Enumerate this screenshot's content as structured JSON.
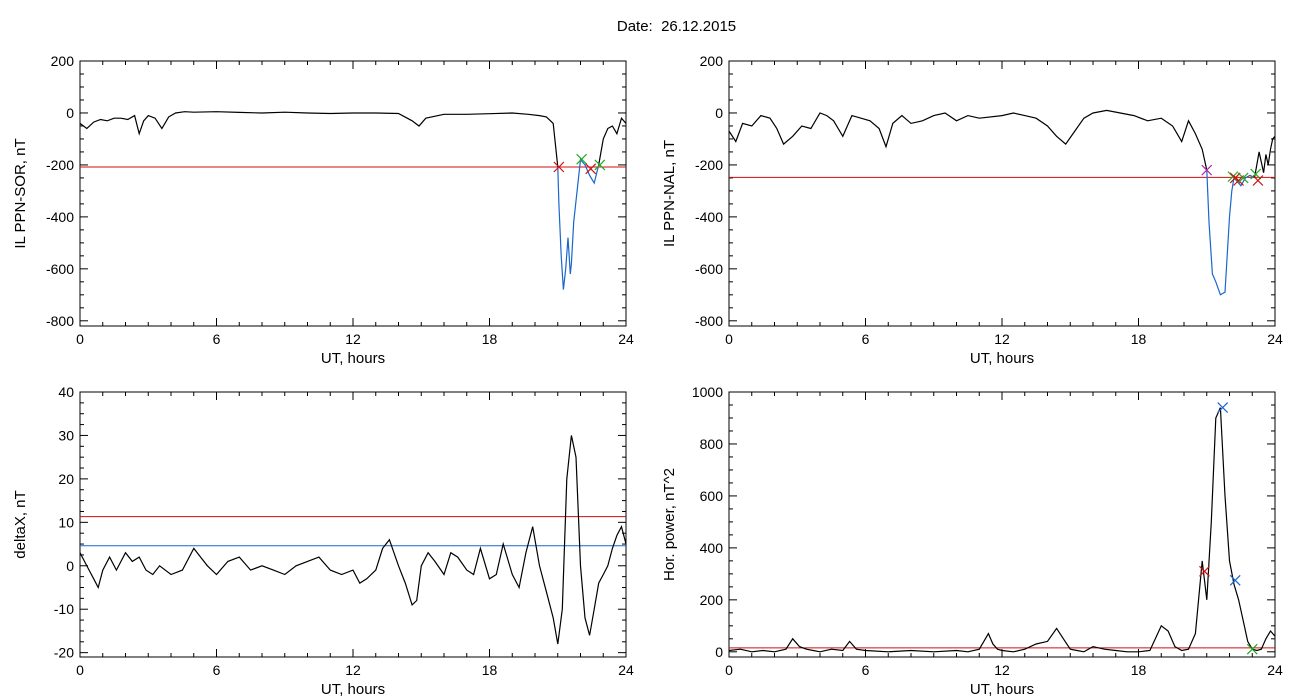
{
  "header": {
    "date_label": "Date:",
    "date_value": "26.12.2015"
  },
  "colors": {
    "data": "#000000",
    "threshold_red": "#cc1111",
    "threshold_blue": "#1a66cc",
    "cross_green": "#22aa22",
    "cross_purple": "#aa22aa"
  },
  "chart_data": [
    {
      "type": "line",
      "title": "",
      "xlabel": "UT, hours",
      "ylabel": "IL PPN-SOR, nT",
      "xlim": [
        0,
        24
      ],
      "ylim": [
        -820,
        200
      ],
      "xticks": [
        0,
        6,
        12,
        18,
        24
      ],
      "yticks": [
        -800,
        -600,
        -400,
        -200,
        0,
        200
      ],
      "series": [
        {
          "color": "#000000",
          "x": [
            0,
            0.3,
            0.6,
            0.9,
            1.2,
            1.5,
            1.8,
            2.1,
            2.4,
            2.6,
            2.8,
            3.0,
            3.3,
            3.6,
            3.9,
            4.2,
            4.6,
            5,
            6,
            7,
            8,
            9,
            10,
            11,
            12,
            13,
            14,
            14.6,
            14.9,
            15.2,
            16,
            17,
            18,
            19,
            19.7,
            20.2,
            20.5,
            20.8,
            21.0
          ],
          "y": [
            -40,
            -60,
            -35,
            -25,
            -30,
            -20,
            -20,
            -25,
            -10,
            -80,
            -30,
            -10,
            -20,
            -60,
            -15,
            0,
            5,
            3,
            5,
            2,
            0,
            3,
            0,
            -2,
            0,
            0,
            -2,
            -30,
            -50,
            -20,
            -5,
            -5,
            -3,
            0,
            -5,
            -10,
            -15,
            -40,
            -208
          ]
        },
        {
          "color": "#1a66cc",
          "x": [
            21.0,
            21.05,
            21.15,
            21.25,
            21.35,
            21.45,
            21.55,
            21.6,
            21.7,
            21.85,
            22.0,
            22.2,
            22.4,
            22.6,
            22.8
          ],
          "y": [
            -208,
            -350,
            -550,
            -680,
            -600,
            -480,
            -620,
            -580,
            -420,
            -300,
            -180,
            -200,
            -240,
            -270,
            -200
          ]
        },
        {
          "color": "#000000",
          "x": [
            22.8,
            23.0,
            23.2,
            23.4,
            23.6,
            23.8,
            24.0
          ],
          "y": [
            -200,
            -100,
            -60,
            -50,
            -80,
            -20,
            -40
          ]
        }
      ],
      "hlines": [
        {
          "y": -208,
          "color": "#cc1111"
        }
      ],
      "markers": [
        {
          "x": 21.05,
          "y": -208,
          "color": "#cc1111"
        },
        {
          "x": 22.05,
          "y": -178,
          "color": "#22aa22"
        },
        {
          "x": 22.45,
          "y": -215,
          "color": "#cc1111"
        },
        {
          "x": 22.85,
          "y": -200,
          "color": "#22aa22"
        }
      ]
    },
    {
      "type": "line",
      "title": "",
      "xlabel": "UT, hours",
      "ylabel": "IL PPN-NAL, nT",
      "xlim": [
        0,
        24
      ],
      "ylim": [
        -820,
        200
      ],
      "xticks": [
        0,
        6,
        12,
        18,
        24
      ],
      "yticks": [
        -800,
        -600,
        -400,
        -200,
        0,
        200
      ],
      "series": [
        {
          "color": "#000000",
          "x": [
            0,
            0.3,
            0.6,
            1.0,
            1.4,
            1.8,
            2.1,
            2.4,
            2.8,
            3.2,
            3.6,
            4.0,
            4.3,
            4.6,
            5.0,
            5.4,
            5.8,
            6.2,
            6.6,
            6.9,
            7.2,
            7.6,
            8.0,
            8.5,
            9,
            9.5,
            10,
            10.5,
            11,
            12,
            12.5,
            13,
            13.5,
            14,
            14.4,
            14.8,
            15.2,
            15.6,
            16,
            16.6,
            17.2,
            17.8,
            18.4,
            19,
            19.5,
            19.9,
            20.2,
            20.5,
            20.8,
            21.0
          ],
          "y": [
            -70,
            -110,
            -40,
            -50,
            -10,
            -20,
            -60,
            -120,
            -90,
            -50,
            -60,
            0,
            -10,
            -30,
            -90,
            -10,
            -20,
            -30,
            -60,
            -130,
            -40,
            -10,
            -40,
            -30,
            -10,
            0,
            -30,
            -10,
            -20,
            -10,
            0,
            -10,
            -20,
            -50,
            -90,
            -120,
            -70,
            -20,
            0,
            10,
            0,
            -10,
            -30,
            -20,
            -50,
            -110,
            -30,
            -80,
            -140,
            -220
          ]
        },
        {
          "color": "#1a66cc",
          "x": [
            21.0,
            21.1,
            21.25,
            21.4,
            21.6,
            21.8,
            22.0,
            22.1,
            22.2,
            22.3,
            22.5,
            22.7,
            22.9,
            23.1
          ],
          "y": [
            -220,
            -420,
            -620,
            -650,
            -700,
            -690,
            -400,
            -300,
            -250,
            -260,
            -280,
            -250,
            -240,
            -250
          ]
        },
        {
          "color": "#000000",
          "x": [
            23.1,
            23.3,
            23.5,
            23.6,
            23.7,
            23.8,
            23.9,
            24.0
          ],
          "y": [
            -250,
            -150,
            -230,
            -160,
            -200,
            -140,
            -100,
            -90
          ]
        }
      ],
      "hlines": [
        {
          "y": -248,
          "color": "#cc1111"
        }
      ],
      "markers": [
        {
          "x": 21.0,
          "y": -220,
          "color": "#aa22aa"
        },
        {
          "x": 22.15,
          "y": -245,
          "color": "#22aa22"
        },
        {
          "x": 22.25,
          "y": -250,
          "color": "#cc1111"
        },
        {
          "x": 22.4,
          "y": -260,
          "color": "#cc1111"
        },
        {
          "x": 22.6,
          "y": -250,
          "color": "#22aa22"
        },
        {
          "x": 23.15,
          "y": -235,
          "color": "#22aa22"
        },
        {
          "x": 23.25,
          "y": -260,
          "color": "#cc1111"
        }
      ]
    },
    {
      "type": "line",
      "title": "",
      "xlabel": "UT, hours",
      "ylabel": "deltaX, nT",
      "xlim": [
        0,
        24
      ],
      "ylim": [
        -21,
        40
      ],
      "xticks": [
        0,
        6,
        12,
        18,
        24
      ],
      "yticks": [
        -20,
        -10,
        0,
        10,
        20,
        30,
        40
      ],
      "series": [
        {
          "color": "#000000",
          "x": [
            0,
            0.2,
            0.4,
            0.6,
            0.8,
            1.0,
            1.3,
            1.6,
            2.0,
            2.3,
            2.6,
            2.9,
            3.2,
            3.5,
            4.0,
            4.5,
            5.0,
            5.3,
            5.6,
            6.0,
            6.5,
            7.0,
            7.5,
            8.0,
            8.5,
            9.0,
            9.5,
            10.0,
            10.5,
            11.0,
            11.5,
            12.0,
            12.3,
            12.6,
            13.0,
            13.3,
            13.6,
            14.0,
            14.3,
            14.6,
            14.8,
            15.0,
            15.3,
            15.6,
            16.0,
            16.3,
            16.6,
            17.0,
            17.3,
            17.6,
            18.0,
            18.3,
            18.6,
            19.0,
            19.3,
            19.6,
            19.9,
            20.2,
            20.5,
            20.8,
            21.0,
            21.2,
            21.4,
            21.6,
            21.8,
            22.0,
            22.2,
            22.4,
            22.6,
            22.8,
            23.0,
            23.2,
            23.4,
            23.6,
            23.8,
            24.0
          ],
          "y": [
            3,
            1,
            -1,
            -3,
            -5,
            -1,
            2,
            -1,
            3,
            1,
            2,
            -1,
            -2,
            0,
            -2,
            -1,
            4,
            2,
            0,
            -2,
            1,
            2,
            -1,
            0,
            -1,
            -2,
            0,
            1,
            2,
            -1,
            -2,
            -1,
            -4,
            -3,
            -1,
            4,
            6,
            0,
            -4,
            -9,
            -8,
            0,
            3,
            1,
            -2,
            3,
            2,
            -1,
            -2,
            4,
            -3,
            -2,
            5,
            -2,
            -5,
            3,
            9,
            0,
            -6,
            -12,
            -18,
            -10,
            20,
            30,
            25,
            0,
            -12,
            -16,
            -10,
            -4,
            -2,
            0,
            4,
            7,
            9,
            5
          ]
        }
      ],
      "hlines": [
        {
          "y": 11.3,
          "color": "#cc1111"
        },
        {
          "y": 4.6,
          "color": "#1a66cc"
        }
      ],
      "markers": []
    },
    {
      "type": "line",
      "title": "",
      "xlabel": "UT, hours",
      "ylabel": "Hor. power, nT^2",
      "xlim": [
        0,
        24
      ],
      "ylim": [
        -20,
        1000
      ],
      "xticks": [
        0,
        6,
        12,
        18,
        24
      ],
      "yticks": [
        0,
        200,
        400,
        600,
        800,
        1000
      ],
      "series": [
        {
          "color": "#000000",
          "x": [
            0,
            0.5,
            1.0,
            1.5,
            2.0,
            2.5,
            2.8,
            3.1,
            3.4,
            3.7,
            4.0,
            4.5,
            5.0,
            5.3,
            5.6,
            6.0,
            7.0,
            8.0,
            9.0,
            10.0,
            10.5,
            11.0,
            11.4,
            11.6,
            11.8,
            12.0,
            12.5,
            13.0,
            13.5,
            14.0,
            14.4,
            14.7,
            15.0,
            15.3,
            15.6,
            16.0,
            16.5,
            17.0,
            17.5,
            18.0,
            18.5,
            19.0,
            19.3,
            19.6,
            19.9,
            20.2,
            20.5,
            20.8,
            21.0,
            21.2,
            21.4,
            21.6,
            21.8,
            22.0,
            22.2,
            22.4,
            22.6,
            22.8,
            23.0,
            23.2,
            23.4,
            23.6,
            23.8,
            24.0
          ],
          "y": [
            5,
            10,
            0,
            5,
            0,
            10,
            50,
            20,
            10,
            5,
            0,
            10,
            5,
            40,
            10,
            5,
            0,
            5,
            0,
            5,
            0,
            10,
            70,
            30,
            10,
            5,
            0,
            10,
            30,
            40,
            90,
            50,
            10,
            5,
            0,
            20,
            10,
            5,
            0,
            0,
            5,
            100,
            80,
            20,
            5,
            10,
            70,
            350,
            200,
            500,
            900,
            940,
            600,
            350,
            260,
            200,
            120,
            40,
            10,
            5,
            10,
            50,
            80,
            60
          ]
        }
      ],
      "hlines": [
        {
          "y": 15,
          "color": "#cc1111"
        }
      ],
      "markers": [
        {
          "x": 20.9,
          "y": 310,
          "color": "#cc1111"
        },
        {
          "x": 21.7,
          "y": 940,
          "color": "#1a66cc"
        },
        {
          "x": 22.25,
          "y": 275,
          "color": "#1a66cc"
        },
        {
          "x": 23.0,
          "y": 10,
          "color": "#22aa22"
        }
      ]
    }
  ]
}
